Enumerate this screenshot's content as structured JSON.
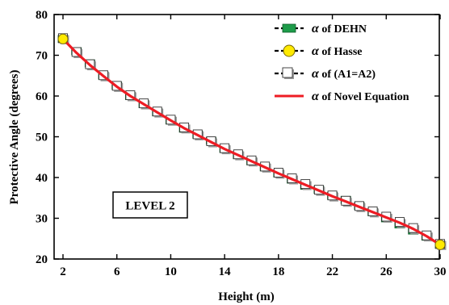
{
  "chart_data": {
    "type": "line",
    "xlabel": "Height (m)",
    "ylabel": "Protective Angle (degrees)",
    "xlim": [
      2,
      30
    ],
    "ylim": [
      20,
      80
    ],
    "xticks": [
      2,
      6,
      10,
      14,
      18,
      22,
      26,
      30
    ],
    "yticks": [
      20,
      30,
      40,
      50,
      60,
      70,
      80
    ],
    "grid": false,
    "legend_position": "top-right",
    "annotation": "LEVEL 2",
    "x": [
      2,
      3,
      4,
      5,
      6,
      7,
      8,
      9,
      10,
      11,
      12,
      13,
      14,
      15,
      16,
      17,
      18,
      19,
      20,
      21,
      22,
      23,
      24,
      25,
      26,
      27,
      28,
      29,
      30
    ],
    "series": [
      {
        "name": "α of DEHN",
        "marker": "green-square",
        "color": "#1e9c4a",
        "values": [
          74,
          71,
          68,
          65,
          62.5,
          60,
          58,
          56,
          54,
          52,
          50.5,
          49,
          47,
          45.5,
          44,
          42.5,
          41,
          39.5,
          38,
          37,
          35.5,
          34.5,
          33,
          31.5,
          30,
          28.5,
          27,
          25.5,
          23.5
        ]
      },
      {
        "name": "α of Hasse",
        "marker": "yellow-circle",
        "color": "#ffea00",
        "values": [
          74,
          70.5,
          67.5,
          64.8,
          62.2,
          60,
          58,
          56,
          54,
          52,
          50.3,
          48.7,
          47,
          45.5,
          44,
          42.5,
          41,
          39.6,
          38.2,
          36.8,
          35.4,
          34.1,
          32.8,
          31.5,
          30.2,
          28.9,
          27.4,
          25.6,
          23.5
        ]
      },
      {
        "name": "α of (A1=A2)",
        "marker": "white-square",
        "color": "#ffffff",
        "values": [
          74,
          70.6,
          67.6,
          64.9,
          62.3,
          60,
          58,
          56,
          54,
          52.1,
          50.4,
          48.7,
          47,
          45.5,
          44,
          42.5,
          41,
          39.6,
          38.2,
          36.8,
          35.4,
          34.1,
          32.8,
          31.5,
          30.2,
          28.9,
          27.4,
          25.6,
          23.5
        ]
      },
      {
        "name": "α of Novel Equation",
        "marker": "line",
        "color": "#ee1c24",
        "values": [
          74,
          70.6,
          67.6,
          64.9,
          62.3,
          60,
          58,
          56,
          54,
          52.1,
          50.4,
          48.7,
          47,
          45.5,
          44,
          42.5,
          41,
          39.6,
          38.2,
          36.8,
          35.4,
          34.1,
          32.8,
          31.5,
          30.2,
          28.9,
          27.4,
          25.6,
          23.5
        ]
      }
    ]
  }
}
